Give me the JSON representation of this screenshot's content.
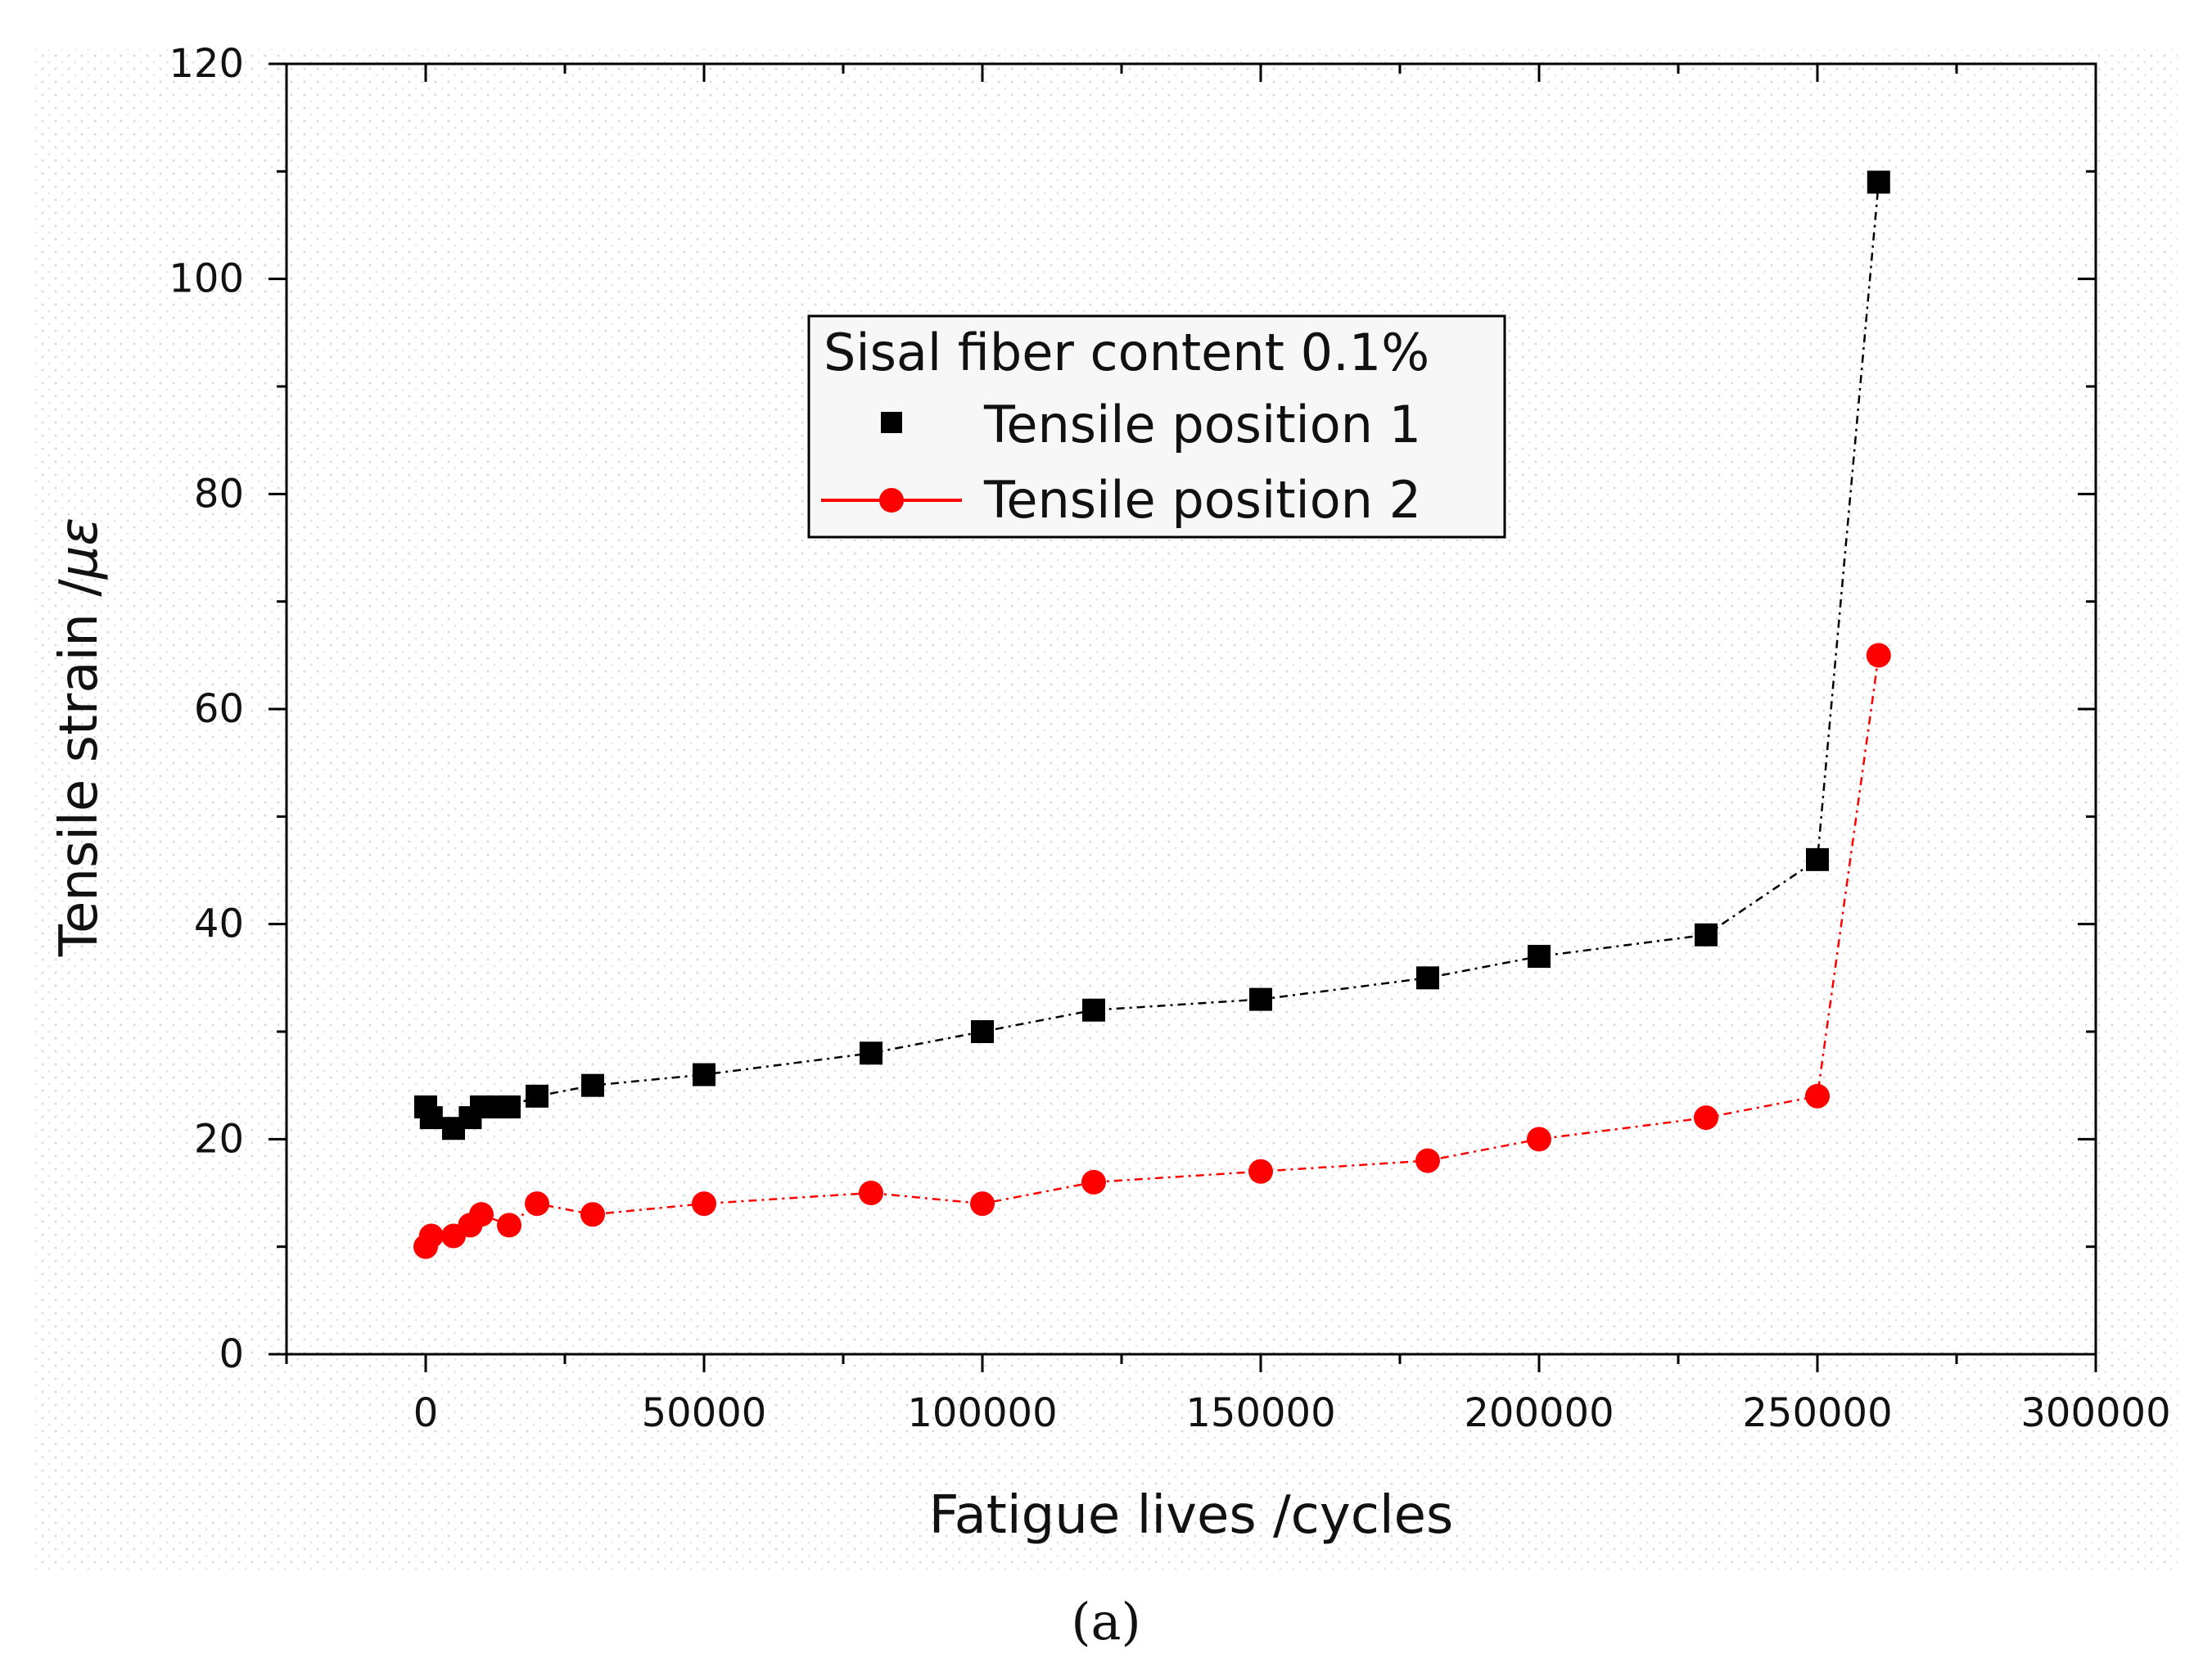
{
  "chart_data": {
    "type": "line",
    "xlabel": "Fatigue lives   /cycles",
    "ylabel_main": "Tensile strain   /",
    "ylabel_unit": "με",
    "xlim": [
      -25000,
      300000
    ],
    "ylim": [
      0,
      120
    ],
    "xticks": [
      0,
      50000,
      100000,
      150000,
      200000,
      250000,
      300000
    ],
    "yticks": [
      0,
      20,
      40,
      60,
      80,
      100,
      120
    ],
    "xtick_labels": [
      "0",
      "50000",
      "100000",
      "150000",
      "200000",
      "250000",
      "300000"
    ],
    "ytick_labels": [
      "0",
      "20",
      "40",
      "60",
      "80",
      "100",
      "120"
    ],
    "legend_title": "Sisal fiber content 0.1%",
    "legend_position": "upper-center",
    "series": [
      {
        "name": "Tensile position 1",
        "color": "#000000",
        "marker": "square",
        "x": [
          0,
          1000,
          5000,
          8000,
          10000,
          13000,
          15000,
          20000,
          30000,
          50000,
          80000,
          100000,
          120000,
          150000,
          180000,
          200000,
          230000,
          250000,
          261000
        ],
        "y": [
          23,
          22,
          21,
          22,
          23,
          23,
          23,
          24,
          25,
          26,
          28,
          30,
          32,
          33,
          35,
          37,
          39,
          46,
          109
        ]
      },
      {
        "name": "Tensile position 2",
        "color": "#ff0000",
        "marker": "circle",
        "x": [
          0,
          1000,
          5000,
          8000,
          10000,
          15000,
          20000,
          30000,
          50000,
          80000,
          100000,
          120000,
          150000,
          180000,
          200000,
          230000,
          250000,
          261000
        ],
        "y": [
          10,
          11,
          11,
          12,
          13,
          12,
          14,
          13,
          14,
          15,
          14,
          16,
          17,
          18,
          20,
          22,
          24,
          65
        ]
      }
    ]
  },
  "caption": {
    "text": "(a)"
  }
}
